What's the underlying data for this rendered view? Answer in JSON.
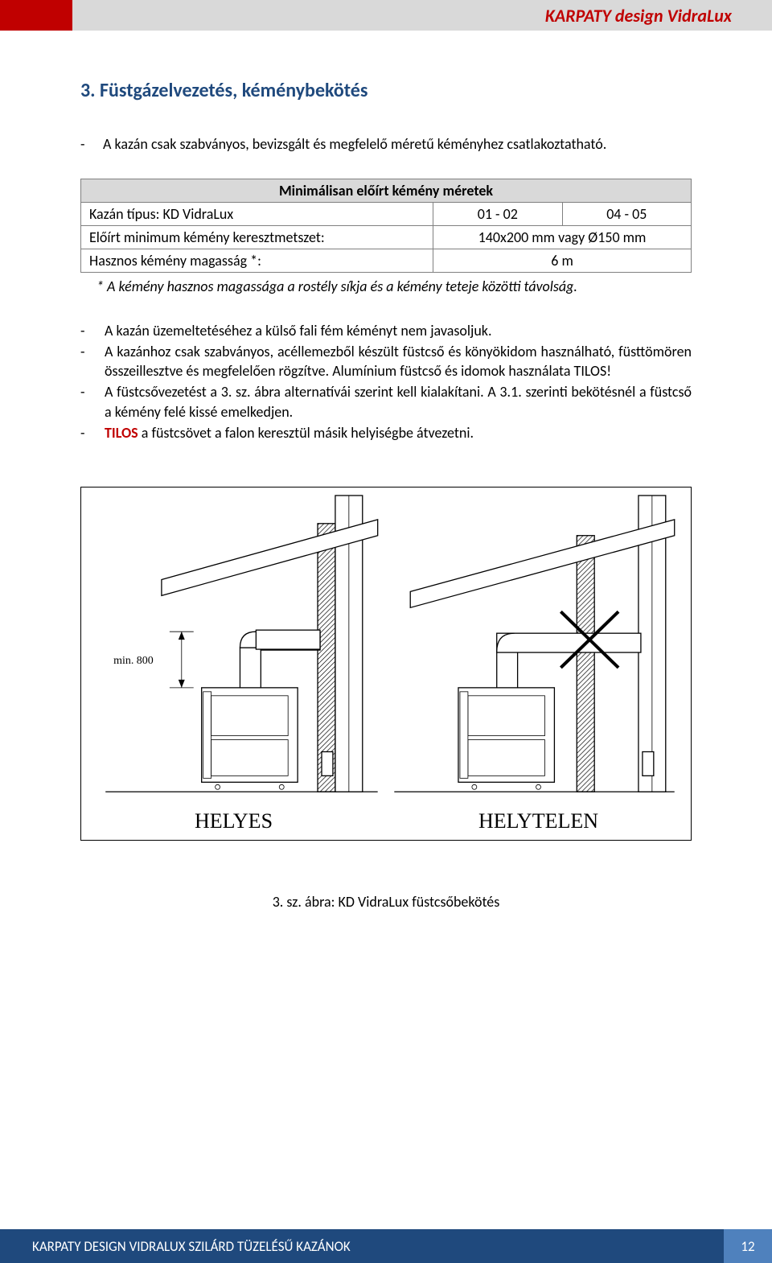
{
  "header": {
    "title": "KARPATY design VidraLux"
  },
  "section": {
    "heading": "3. Füstgázelvezetés, kéménybekötés"
  },
  "intro": {
    "text": "A kazán csak szabványos, bevizsgált és megfelelő méretű kéményhez csatlakoztatható."
  },
  "table": {
    "title": "Minimálisan előírt kémény méretek",
    "rows": [
      {
        "label": "Kazán típus: KD VidraLux",
        "c1": "01 - 02",
        "c2": "04 - 05"
      },
      {
        "label": "Előírt minimum kémény keresztmetszet:",
        "c1_2": "140x200 mm vagy Ø150 mm"
      },
      {
        "label": "Hasznos kémény magasság *:",
        "c1_2": "6 m"
      }
    ],
    "note": "* A kémény hasznos magassága a rostély síkja és a kémény teteje közötti távolság."
  },
  "bullets": [
    "A kazán üzemeltetéséhez a külső fali fém kéményt nem javasoljuk.",
    "A kazánhoz csak szabványos, acéllemezből készült füstcső és könyökidom használható, füsttömören összeillesztve és megfelelően rögzítve. Alumínium füstcső és idomok használata TILOS!",
    "A füstcsővezetést a 3. sz. ábra alternatívái szerint kell kialakítani. A 3.1. szerinti bekötésnél a füstcső a kémény felé kissé emelkedjen.",
    "__TILOS__ a füstcsövet a falon keresztül másik helyiségbe átvezetni."
  ],
  "figure": {
    "left_label": "HELYES",
    "right_label": "HELYTELEN",
    "dim_text": "min. 800",
    "caption": "3. sz. ábra: KD VidraLux  füstcsőbekötés"
  },
  "footer": {
    "text": "KARPATY DESIGN VIDRALUX SZILÁRD TÜZELÉSŰ KAZÁNOK",
    "page": "12"
  },
  "colors": {
    "red": "#c00000",
    "gray": "#d9d9d9",
    "darkblue": "#1f497d",
    "midblue": "#4f81bd"
  }
}
